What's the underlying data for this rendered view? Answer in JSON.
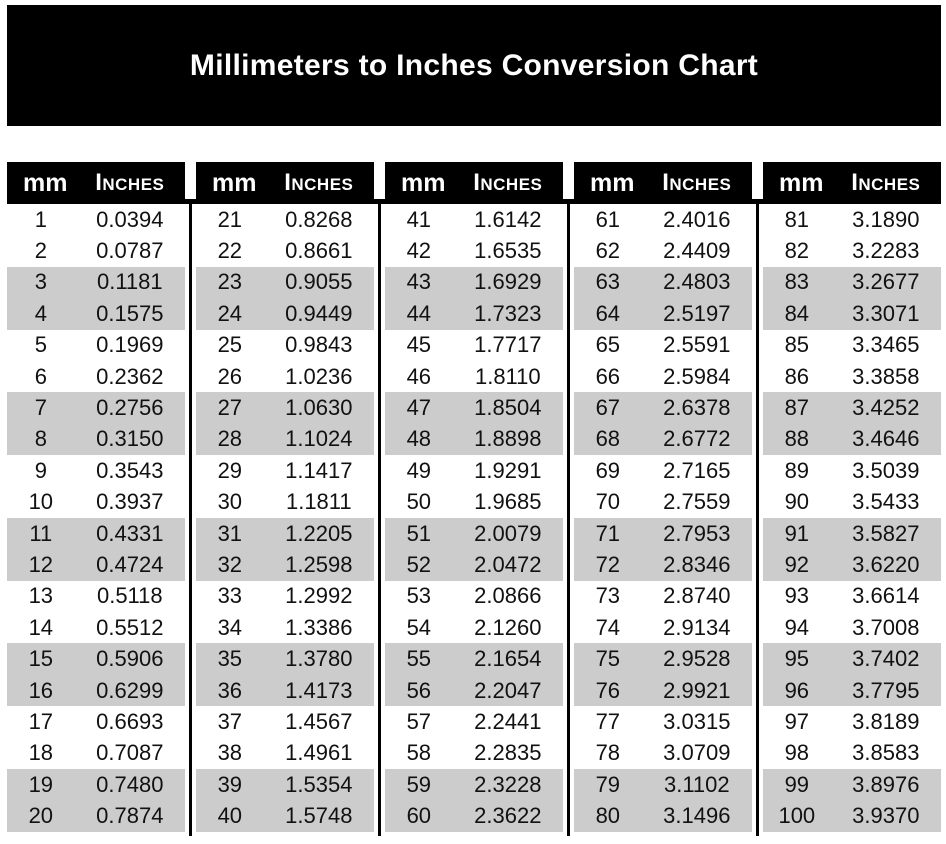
{
  "header": {
    "title": "Millimeters to Inches Conversion Chart"
  },
  "table": {
    "col_mm": "mm",
    "col_inches": "Inches",
    "colors": {
      "header_bg": "#000000",
      "header_text": "#ffffff",
      "band_shaded": "#cccccc",
      "band_plain": "#ffffff"
    }
  },
  "chart_data": {
    "type": "table",
    "title": "Millimeters to Inches Conversion Chart",
    "columns": [
      "mm",
      "Inches"
    ],
    "groups": [
      {
        "rows": [
          [
            "1",
            "0.0394"
          ],
          [
            "2",
            "0.0787"
          ],
          [
            "3",
            "0.1181"
          ],
          [
            "4",
            "0.1575"
          ],
          [
            "5",
            "0.1969"
          ],
          [
            "6",
            "0.2362"
          ],
          [
            "7",
            "0.2756"
          ],
          [
            "8",
            "0.3150"
          ],
          [
            "9",
            "0.3543"
          ],
          [
            "10",
            "0.3937"
          ],
          [
            "11",
            "0.4331"
          ],
          [
            "12",
            "0.4724"
          ],
          [
            "13",
            "0.5118"
          ],
          [
            "14",
            "0.5512"
          ],
          [
            "15",
            "0.5906"
          ],
          [
            "16",
            "0.6299"
          ],
          [
            "17",
            "0.6693"
          ],
          [
            "18",
            "0.7087"
          ],
          [
            "19",
            "0.7480"
          ],
          [
            "20",
            "0.7874"
          ]
        ]
      },
      {
        "rows": [
          [
            "21",
            "0.8268"
          ],
          [
            "22",
            "0.8661"
          ],
          [
            "23",
            "0.9055"
          ],
          [
            "24",
            "0.9449"
          ],
          [
            "25",
            "0.9843"
          ],
          [
            "26",
            "1.0236"
          ],
          [
            "27",
            "1.0630"
          ],
          [
            "28",
            "1.1024"
          ],
          [
            "29",
            "1.1417"
          ],
          [
            "30",
            "1.1811"
          ],
          [
            "31",
            "1.2205"
          ],
          [
            "32",
            "1.2598"
          ],
          [
            "33",
            "1.2992"
          ],
          [
            "34",
            "1.3386"
          ],
          [
            "35",
            "1.3780"
          ],
          [
            "36",
            "1.4173"
          ],
          [
            "37",
            "1.4567"
          ],
          [
            "38",
            "1.4961"
          ],
          [
            "39",
            "1.5354"
          ],
          [
            "40",
            "1.5748"
          ]
        ]
      },
      {
        "rows": [
          [
            "41",
            "1.6142"
          ],
          [
            "42",
            "1.6535"
          ],
          [
            "43",
            "1.6929"
          ],
          [
            "44",
            "1.7323"
          ],
          [
            "45",
            "1.7717"
          ],
          [
            "46",
            "1.8110"
          ],
          [
            "47",
            "1.8504"
          ],
          [
            "48",
            "1.8898"
          ],
          [
            "49",
            "1.9291"
          ],
          [
            "50",
            "1.9685"
          ],
          [
            "51",
            "2.0079"
          ],
          [
            "52",
            "2.0472"
          ],
          [
            "53",
            "2.0866"
          ],
          [
            "54",
            "2.1260"
          ],
          [
            "55",
            "2.1654"
          ],
          [
            "56",
            "2.2047"
          ],
          [
            "57",
            "2.2441"
          ],
          [
            "58",
            "2.2835"
          ],
          [
            "59",
            "2.3228"
          ],
          [
            "60",
            "2.3622"
          ]
        ]
      },
      {
        "rows": [
          [
            "61",
            "2.4016"
          ],
          [
            "62",
            "2.4409"
          ],
          [
            "63",
            "2.4803"
          ],
          [
            "64",
            "2.5197"
          ],
          [
            "65",
            "2.5591"
          ],
          [
            "66",
            "2.5984"
          ],
          [
            "67",
            "2.6378"
          ],
          [
            "68",
            "2.6772"
          ],
          [
            "69",
            "2.7165"
          ],
          [
            "70",
            "2.7559"
          ],
          [
            "71",
            "2.7953"
          ],
          [
            "72",
            "2.8346"
          ],
          [
            "73",
            "2.8740"
          ],
          [
            "74",
            "2.9134"
          ],
          [
            "75",
            "2.9528"
          ],
          [
            "76",
            "2.9921"
          ],
          [
            "77",
            "3.0315"
          ],
          [
            "78",
            "3.0709"
          ],
          [
            "79",
            "3.1102"
          ],
          [
            "80",
            "3.1496"
          ]
        ]
      },
      {
        "rows": [
          [
            "81",
            "3.1890"
          ],
          [
            "82",
            "3.2283"
          ],
          [
            "83",
            "3.2677"
          ],
          [
            "84",
            "3.3071"
          ],
          [
            "85",
            "3.3465"
          ],
          [
            "86",
            "3.3858"
          ],
          [
            "87",
            "3.4252"
          ],
          [
            "88",
            "3.4646"
          ],
          [
            "89",
            "3.5039"
          ],
          [
            "90",
            "3.5433"
          ],
          [
            "91",
            "3.5827"
          ],
          [
            "92",
            "3.6220"
          ],
          [
            "93",
            "3.6614"
          ],
          [
            "94",
            "3.7008"
          ],
          [
            "95",
            "3.7402"
          ],
          [
            "96",
            "3.7795"
          ],
          [
            "97",
            "3.8189"
          ],
          [
            "98",
            "3.8583"
          ],
          [
            "99",
            "3.8976"
          ],
          [
            "100",
            "3.9370"
          ]
        ]
      }
    ]
  }
}
